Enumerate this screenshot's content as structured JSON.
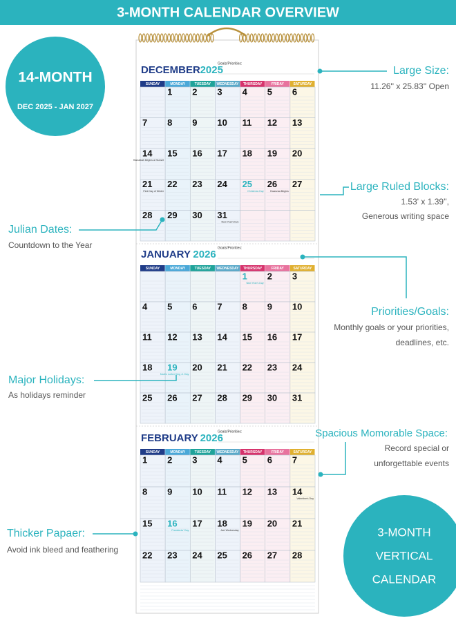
{
  "banner": {
    "title": "3-MONTH CALENDAR OVERVIEW"
  },
  "badge_top": {
    "title": "14-MONTH",
    "subtitle": "DEC 2025 - JAN 2027"
  },
  "badge_bottom": {
    "lines": [
      "3-MONTH",
      "VERTICAL",
      "CALENDAR"
    ]
  },
  "callouts": [
    {
      "title": "Large Size:",
      "lines": [
        "11.26'' x 25.83'' Open"
      ]
    },
    {
      "title": "Large Ruled Blocks:",
      "lines": [
        "1.53' x 1.39'',",
        "Generous writing space"
      ]
    },
    {
      "title": "Julian Dates:",
      "lines": [
        "Countdown to the Year"
      ]
    },
    {
      "title": "Priorities/Goals:",
      "lines": [
        "Monthly goals or your priorities,",
        "deadlines, etc."
      ]
    },
    {
      "title": "Major Holidays:",
      "lines": [
        "As holidays reminder"
      ]
    },
    {
      "title": "Spacious Momorable Space:",
      "lines": [
        "Record special or",
        "unforgettable events"
      ]
    },
    {
      "title": "Thicker Papaer:",
      "lines": [
        "Avoid ink bleed and feathering"
      ]
    }
  ],
  "calendar": {
    "goals_label": "Goals/Priorities:",
    "weekdays": [
      "SUNDAY",
      "MONDAY",
      "TUESDAY",
      "WEDNESDAY",
      "THURSDAY",
      "FRIDAY",
      "SATURDAY"
    ],
    "months": [
      {
        "name": "DECEMBER",
        "year": "2025",
        "weeks": [
          [
            null,
            1,
            2,
            3,
            4,
            5,
            6
          ],
          [
            7,
            8,
            9,
            10,
            11,
            12,
            13
          ],
          [
            14,
            15,
            16,
            17,
            18,
            19,
            20
          ],
          [
            21,
            22,
            23,
            24,
            25,
            26,
            27
          ],
          [
            28,
            29,
            30,
            31,
            null,
            null,
            null
          ]
        ],
        "notes": [
          {
            "day": 14,
            "text": "Hanukkah Begins at Sunset"
          },
          {
            "day": 21,
            "text": "First Day of Winter"
          },
          {
            "day": 25,
            "text": "Christmas Day",
            "highlight": true
          },
          {
            "day": 26,
            "text": "Kwanzaa Begins"
          },
          {
            "day": 31,
            "text": "New Year's Eve"
          }
        ]
      },
      {
        "name": "JANUARY",
        "year": "2026",
        "weeks": [
          [
            null,
            null,
            null,
            null,
            1,
            2,
            3
          ],
          [
            4,
            5,
            6,
            7,
            8,
            9,
            10
          ],
          [
            11,
            12,
            13,
            14,
            15,
            16,
            17
          ],
          [
            18,
            19,
            20,
            21,
            22,
            23,
            24
          ],
          [
            25,
            26,
            27,
            28,
            29,
            30,
            31
          ]
        ],
        "notes": [
          {
            "day": 1,
            "text": "New Year's Day",
            "highlight": true
          },
          {
            "day": 19,
            "text": "Martin Luther King Jr. Day",
            "highlight": true
          }
        ]
      },
      {
        "name": "FEBRUARY",
        "year": "2026",
        "weeks": [
          [
            1,
            2,
            3,
            4,
            5,
            6,
            7
          ],
          [
            8,
            9,
            10,
            11,
            12,
            13,
            14
          ],
          [
            15,
            16,
            17,
            18,
            19,
            20,
            21
          ],
          [
            22,
            23,
            24,
            25,
            26,
            27,
            28
          ]
        ],
        "notes": [
          {
            "day": 14,
            "text": "Valentine's Day"
          },
          {
            "day": 16,
            "text": "Presidents' Day",
            "highlight": true
          },
          {
            "day": 18,
            "text": "Ash Wednesday"
          }
        ]
      }
    ]
  }
}
